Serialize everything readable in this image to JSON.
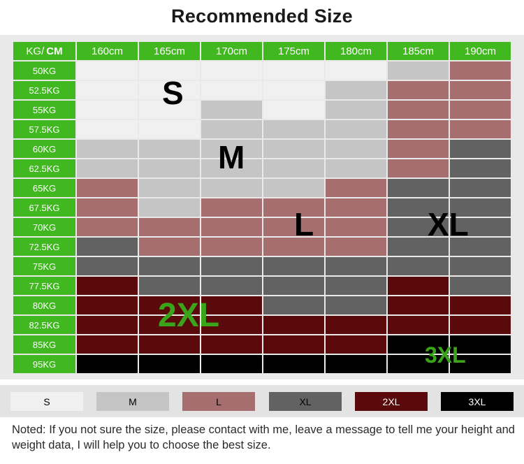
{
  "title": "Recommended Size",
  "corner": {
    "kg": "KG",
    "sep": " /",
    "cm": "CM"
  },
  "heights": [
    "160cm",
    "165cm",
    "170cm",
    "175cm",
    "180cm",
    "185cm",
    "190cm"
  ],
  "weights": [
    "50KG",
    "52.5KG",
    "55KG",
    "57.5KG",
    "60KG",
    "62.5KG",
    "65KG",
    "67.5KG",
    "70KG",
    "72.5KG",
    "75KG",
    "77.5KG",
    "80KG",
    "82.5KG",
    "85KG",
    "95KG"
  ],
  "sizes": {
    "S": {
      "label": "S",
      "color": "#f0f0f0",
      "text_color": "#000000"
    },
    "M": {
      "label": "M",
      "color": "#c5c5c5",
      "text_color": "#000000"
    },
    "L": {
      "label": "L",
      "color": "#a66e6e",
      "text_color": "#000000"
    },
    "XL": {
      "label": "XL",
      "color": "#626262",
      "text_color": "#000000"
    },
    "2XL": {
      "label": "2XL",
      "color": "#5a0a0a",
      "text_color": "#ffffff"
    },
    "3XL": {
      "label": "3XL",
      "color": "#000000",
      "text_color": "#ffffff"
    }
  },
  "size_grid": [
    [
      "S",
      "S",
      "S",
      "S",
      "S",
      "M",
      "L"
    ],
    [
      "S",
      "S",
      "S",
      "S",
      "M",
      "L",
      "L"
    ],
    [
      "S",
      "S",
      "M",
      "S",
      "M",
      "L",
      "L"
    ],
    [
      "S",
      "S",
      "M",
      "M",
      "M",
      "L",
      "L"
    ],
    [
      "M",
      "M",
      "M",
      "M",
      "M",
      "L",
      "XL"
    ],
    [
      "M",
      "M",
      "M",
      "M",
      "M",
      "L",
      "XL"
    ],
    [
      "L",
      "M",
      "M",
      "M",
      "L",
      "XL",
      "XL"
    ],
    [
      "L",
      "M",
      "L",
      "L",
      "L",
      "XL",
      "XL"
    ],
    [
      "L",
      "L",
      "L",
      "L",
      "L",
      "XL",
      "XL"
    ],
    [
      "XL",
      "L",
      "L",
      "L",
      "L",
      "XL",
      "XL"
    ],
    [
      "XL",
      "XL",
      "XL",
      "XL",
      "XL",
      "XL",
      "XL"
    ],
    [
      "2XL",
      "XL",
      "XL",
      "XL",
      "XL",
      "2XL",
      "XL"
    ],
    [
      "2XL",
      "2XL",
      "2XL",
      "XL",
      "XL",
      "2XL",
      "2XL"
    ],
    [
      "2XL",
      "2XL",
      "2XL",
      "2XL",
      "2XL",
      "2XL",
      "2XL"
    ],
    [
      "2XL",
      "2XL",
      "2XL",
      "2XL",
      "2XL",
      "3XL",
      "3XL"
    ],
    [
      "3XL",
      "3XL",
      "3XL",
      "3XL",
      "3XL",
      "3XL",
      "3XL"
    ]
  ],
  "zone_labels": [
    {
      "text": "S",
      "color": "#000000"
    },
    {
      "text": "M",
      "color": "#000000"
    },
    {
      "text": "L",
      "color": "#000000"
    },
    {
      "text": "XL",
      "color": "#000000"
    },
    {
      "text": "2XL",
      "color": "#3aa51a"
    },
    {
      "text": "3XL",
      "color": "#3aa51a"
    }
  ],
  "legend": [
    "S",
    "M",
    "L",
    "XL",
    "2XL",
    "3XL"
  ],
  "note": "Noted: If you not sure the size, please contact with me, leave a message to tell me your height and weight data, I will help you to choose the best size.",
  "colors": {
    "header_green": "#41b81f",
    "panel_bg": "#e9e9e9"
  }
}
